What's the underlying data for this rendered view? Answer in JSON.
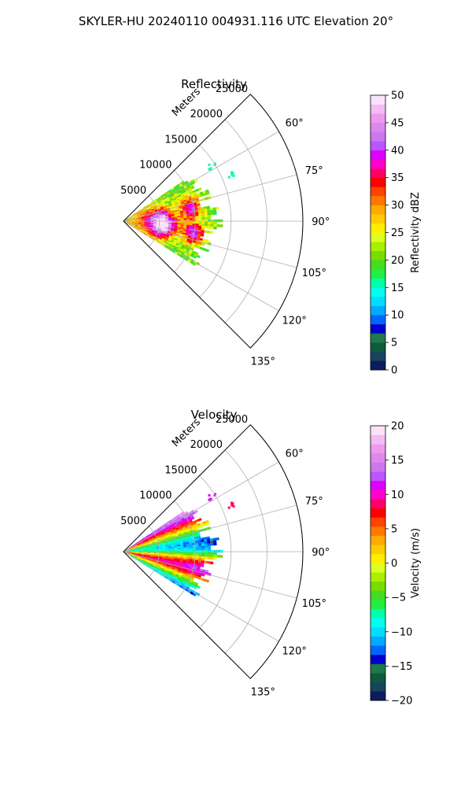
{
  "figure": {
    "suptitle": "SKYLER-HU  20240110  004931.116 UTC Elevation 20°"
  },
  "chart_data": [
    {
      "type": "heatmap",
      "subtype": "polar-ppi-sector",
      "title": "Reflectivity",
      "range_label": "Meters",
      "range_ticks": [
        5000,
        10000,
        15000,
        20000,
        25000
      ],
      "range_tick_labels": [
        "5000",
        "10000",
        "15000",
        "20000",
        "25000"
      ],
      "rmax": 25000,
      "azimuth_limits_deg": [
        45,
        135
      ],
      "azimuth_ticks": [
        60,
        75,
        90,
        105,
        120,
        135
      ],
      "azimuth_tick_labels": [
        "60°",
        "75°",
        "90°",
        "105°",
        "120°",
        "135°"
      ],
      "grid": true,
      "data_extent": {
        "azimuth_deg": [
          56,
          122
        ],
        "range_m_max": 13800
      },
      "colorbar": {
        "label": "Reflectivity dBZ",
        "vmin": 0,
        "vmax": 50,
        "ticks": [
          0,
          5,
          10,
          15,
          20,
          25,
          30,
          35,
          40,
          45,
          50
        ],
        "tick_labels": [
          "0",
          "5",
          "10",
          "15",
          "20",
          "25",
          "30",
          "35",
          "40",
          "45",
          "50"
        ],
        "levels": [
          0,
          2,
          4,
          6,
          8,
          10,
          12,
          14,
          16,
          18,
          20,
          22,
          24,
          26,
          28,
          30,
          32,
          34,
          36,
          38,
          40,
          42,
          44,
          46,
          48,
          50
        ],
        "colors": [
          "#0a1d5e",
          "#18445c",
          "#0e5a3a",
          "#1d7a4a",
          "#0000cc",
          "#0066ff",
          "#00aaff",
          "#00ddff",
          "#00ffee",
          "#00ffaa",
          "#22ee44",
          "#44dd22",
          "#77dd00",
          "#aaee00",
          "#ddff22",
          "#ffee00",
          "#ffcc00",
          "#ffaa00",
          "#ff7700",
          "#ff4400",
          "#ff0000",
          "#ff0066",
          "#ff00cc",
          "#dd00ff",
          "#bb55ff",
          "#cc77ee",
          "#dd88ee",
          "#ee99ee",
          "#f4bbf4",
          "#fbe2fb"
        ]
      },
      "field": {
        "colorbar_label": "Reflectivity dBZ",
        "base": 21,
        "cells": [
          {
            "az": 83,
            "r": 5200,
            "value": 38
          },
          {
            "az": 79,
            "r": 9500,
            "value": 40
          },
          {
            "az": 96,
            "r": 6400,
            "value": 38
          },
          {
            "az": 100,
            "r": 10000,
            "value": 40
          },
          {
            "az": 103,
            "r": 5000,
            "value": 37
          },
          {
            "az": 88,
            "r": 3000,
            "value": 28
          }
        ],
        "echoes": [
          {
            "az": 58,
            "r": 14500,
            "value": 15
          },
          {
            "az": 67,
            "r": 16500,
            "value": 15
          }
        ]
      }
    },
    {
      "type": "heatmap",
      "subtype": "polar-ppi-sector",
      "title": "Velocity",
      "range_label": "Meters",
      "range_ticks": [
        5000,
        10000,
        15000,
        20000,
        25000
      ],
      "range_tick_labels": [
        "5000",
        "10000",
        "15000",
        "20000",
        "25000"
      ],
      "rmax": 25000,
      "azimuth_limits_deg": [
        45,
        135
      ],
      "azimuth_ticks": [
        60,
        75,
        90,
        105,
        120,
        135
      ],
      "azimuth_tick_labels": [
        "60°",
        "75°",
        "90°",
        "105°",
        "120°",
        "135°"
      ],
      "grid": true,
      "data_extent": {
        "azimuth_deg": [
          56,
          122
        ],
        "range_m_max": 13800
      },
      "colorbar": {
        "label": "Velocity (m/s)",
        "vmin": -20,
        "vmax": 20,
        "ticks": [
          -20,
          -15,
          -10,
          -5,
          0,
          5,
          10,
          15,
          20
        ],
        "tick_labels": [
          "−20",
          "−15",
          "−10",
          "−5",
          "0",
          "5",
          "10",
          "15",
          "20"
        ],
        "colors": [
          "#0a1d5e",
          "#18445c",
          "#0e5a3a",
          "#1d7a4a",
          "#0000cc",
          "#0066ff",
          "#00aaff",
          "#00ddff",
          "#00ffee",
          "#00ffaa",
          "#22ee44",
          "#44dd22",
          "#77dd00",
          "#aaee00",
          "#ddff22",
          "#ffee00",
          "#ffcc00",
          "#ffaa00",
          "#ff7700",
          "#ff4400",
          "#ff0000",
          "#ff0066",
          "#ff00cc",
          "#dd00ff",
          "#bb55ff",
          "#cc77ee",
          "#dd88ee",
          "#ee99ee",
          "#f4bbf4",
          "#fbe2fb"
        ]
      },
      "field": {
        "colorbar_label": "Velocity (m/s)",
        "profile": [
          {
            "az": 58,
            "value": 16
          },
          {
            "az": 63,
            "value": 11
          },
          {
            "az": 68,
            "value": 5
          },
          {
            "az": 73,
            "value": -2
          },
          {
            "az": 78,
            "value": -8
          },
          {
            "az": 83,
            "value": -12
          },
          {
            "az": 88,
            "value": -10
          },
          {
            "az": 91,
            "value": -6
          },
          {
            "az": 95,
            "value": 2
          },
          {
            "az": 99,
            "value": 8
          },
          {
            "az": 103,
            "value": 12
          },
          {
            "az": 108,
            "value": 7
          },
          {
            "az": 113,
            "value": -2
          },
          {
            "az": 118,
            "value": -9
          },
          {
            "az": 122,
            "value": -12
          }
        ],
        "echoes": [
          {
            "az": 58,
            "r": 14500,
            "value": 11
          },
          {
            "az": 67,
            "r": 16500,
            "value": 9
          }
        ]
      }
    }
  ]
}
